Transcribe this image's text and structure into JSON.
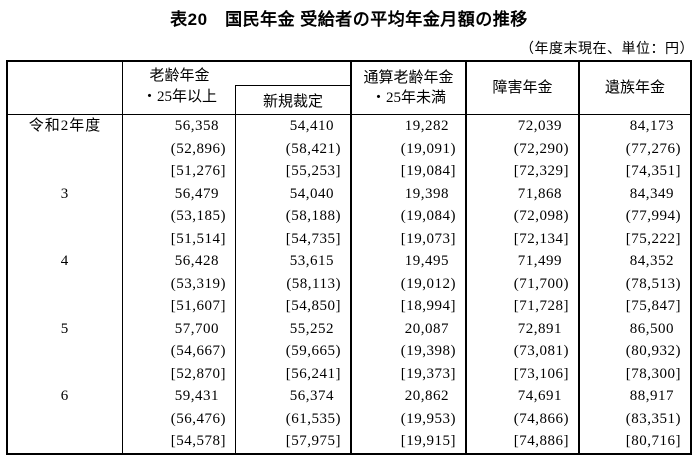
{
  "title": "表20　国民年金 受給者の平均年金月額の推移",
  "note": "（年度末現在、単位：円）",
  "headers": {
    "year_col": "",
    "old_age": "老齢年金\n・25年以上",
    "new_award": "新規裁定",
    "total_old_age": "通算老齢年金\n・25年未満",
    "disability": "障害年金",
    "survivor": "遺族年金"
  },
  "rows": [
    {
      "label": "令和2年度",
      "cells": [
        [
          "56,358",
          "(52,896)",
          "[51,276]"
        ],
        [
          "54,410",
          "(58,421)",
          "[55,253]"
        ],
        [
          "19,282",
          "(19,091)",
          "[19,084]"
        ],
        [
          "72,039",
          "(72,290)",
          "[72,329]"
        ],
        [
          "84,173",
          "(77,276)",
          "[74,351]"
        ]
      ]
    },
    {
      "label": "3",
      "cells": [
        [
          "56,479",
          "(53,185)",
          "[51,514]"
        ],
        [
          "54,040",
          "(58,188)",
          "[54,735]"
        ],
        [
          "19,398",
          "(19,084)",
          "[19,073]"
        ],
        [
          "71,868",
          "(72,098)",
          "[72,134]"
        ],
        [
          "84,349",
          "(77,994)",
          "[75,222]"
        ]
      ]
    },
    {
      "label": "4",
      "cells": [
        [
          "56,428",
          "(53,319)",
          "[51,607]"
        ],
        [
          "53,615",
          "(58,113)",
          "[54,850]"
        ],
        [
          "19,495",
          "(19,012)",
          "[18,994]"
        ],
        [
          "71,499",
          "(71,700)",
          "[71,728]"
        ],
        [
          "84,352",
          "(78,513)",
          "[75,847]"
        ]
      ]
    },
    {
      "label": "5",
      "cells": [
        [
          "57,700",
          "(54,667)",
          "[52,870]"
        ],
        [
          "55,252",
          "(59,665)",
          "[56,241]"
        ],
        [
          "20,087",
          "(19,398)",
          "[19,373]"
        ],
        [
          "72,891",
          "(73,081)",
          "[73,106]"
        ],
        [
          "86,500",
          "(80,932)",
          "[78,300]"
        ]
      ]
    },
    {
      "label": "6",
      "cells": [
        [
          "59,431",
          "(56,476)",
          "[54,578]"
        ],
        [
          "56,374",
          "(61,535)",
          "[57,975]"
        ],
        [
          "20,862",
          "(19,953)",
          "[19,915]"
        ],
        [
          "74,691",
          "(74,866)",
          "[74,886]"
        ],
        [
          "88,917",
          "(83,351)",
          "[80,716]"
        ]
      ]
    }
  ],
  "colors": {
    "border": "#000000",
    "background": "#ffffff",
    "text": "#000000"
  }
}
